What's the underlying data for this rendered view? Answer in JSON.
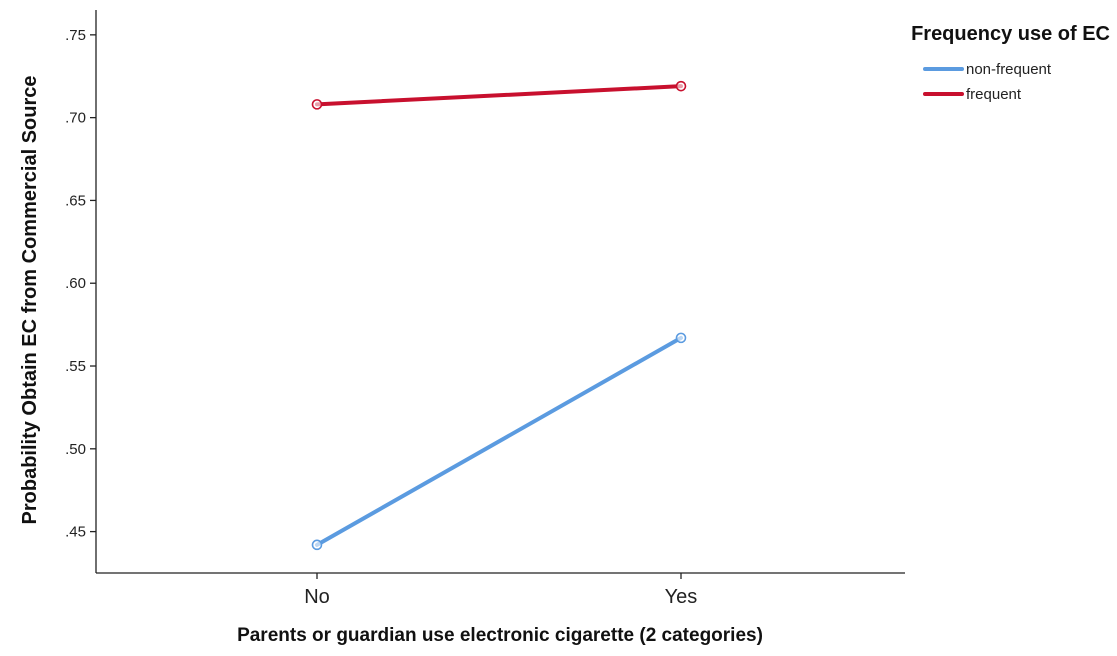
{
  "chart_data": {
    "type": "line",
    "title": "",
    "xlabel": "Parents or guardian use electronic cigarette (2 categories)",
    "ylabel": "Probability Obtain EC from Commercial Source",
    "categories": [
      "No",
      "Yes"
    ],
    "y_ticks": [
      ".45",
      ".50",
      ".55",
      ".60",
      ".65",
      ".70",
      ".75"
    ],
    "y_tick_values": [
      0.45,
      0.5,
      0.55,
      0.6,
      0.65,
      0.7,
      0.75
    ],
    "ylim": [
      0.425,
      0.765
    ],
    "grid": false,
    "legend_position": "top-right",
    "legend_title": "Frequency use of EC",
    "series": [
      {
        "name": "non-frequent",
        "values": [
          0.442,
          0.567
        ],
        "color": "#5B9BE0"
      },
      {
        "name": "frequent",
        "values": [
          0.708,
          0.719
        ],
        "color": "#C8102E"
      }
    ]
  }
}
